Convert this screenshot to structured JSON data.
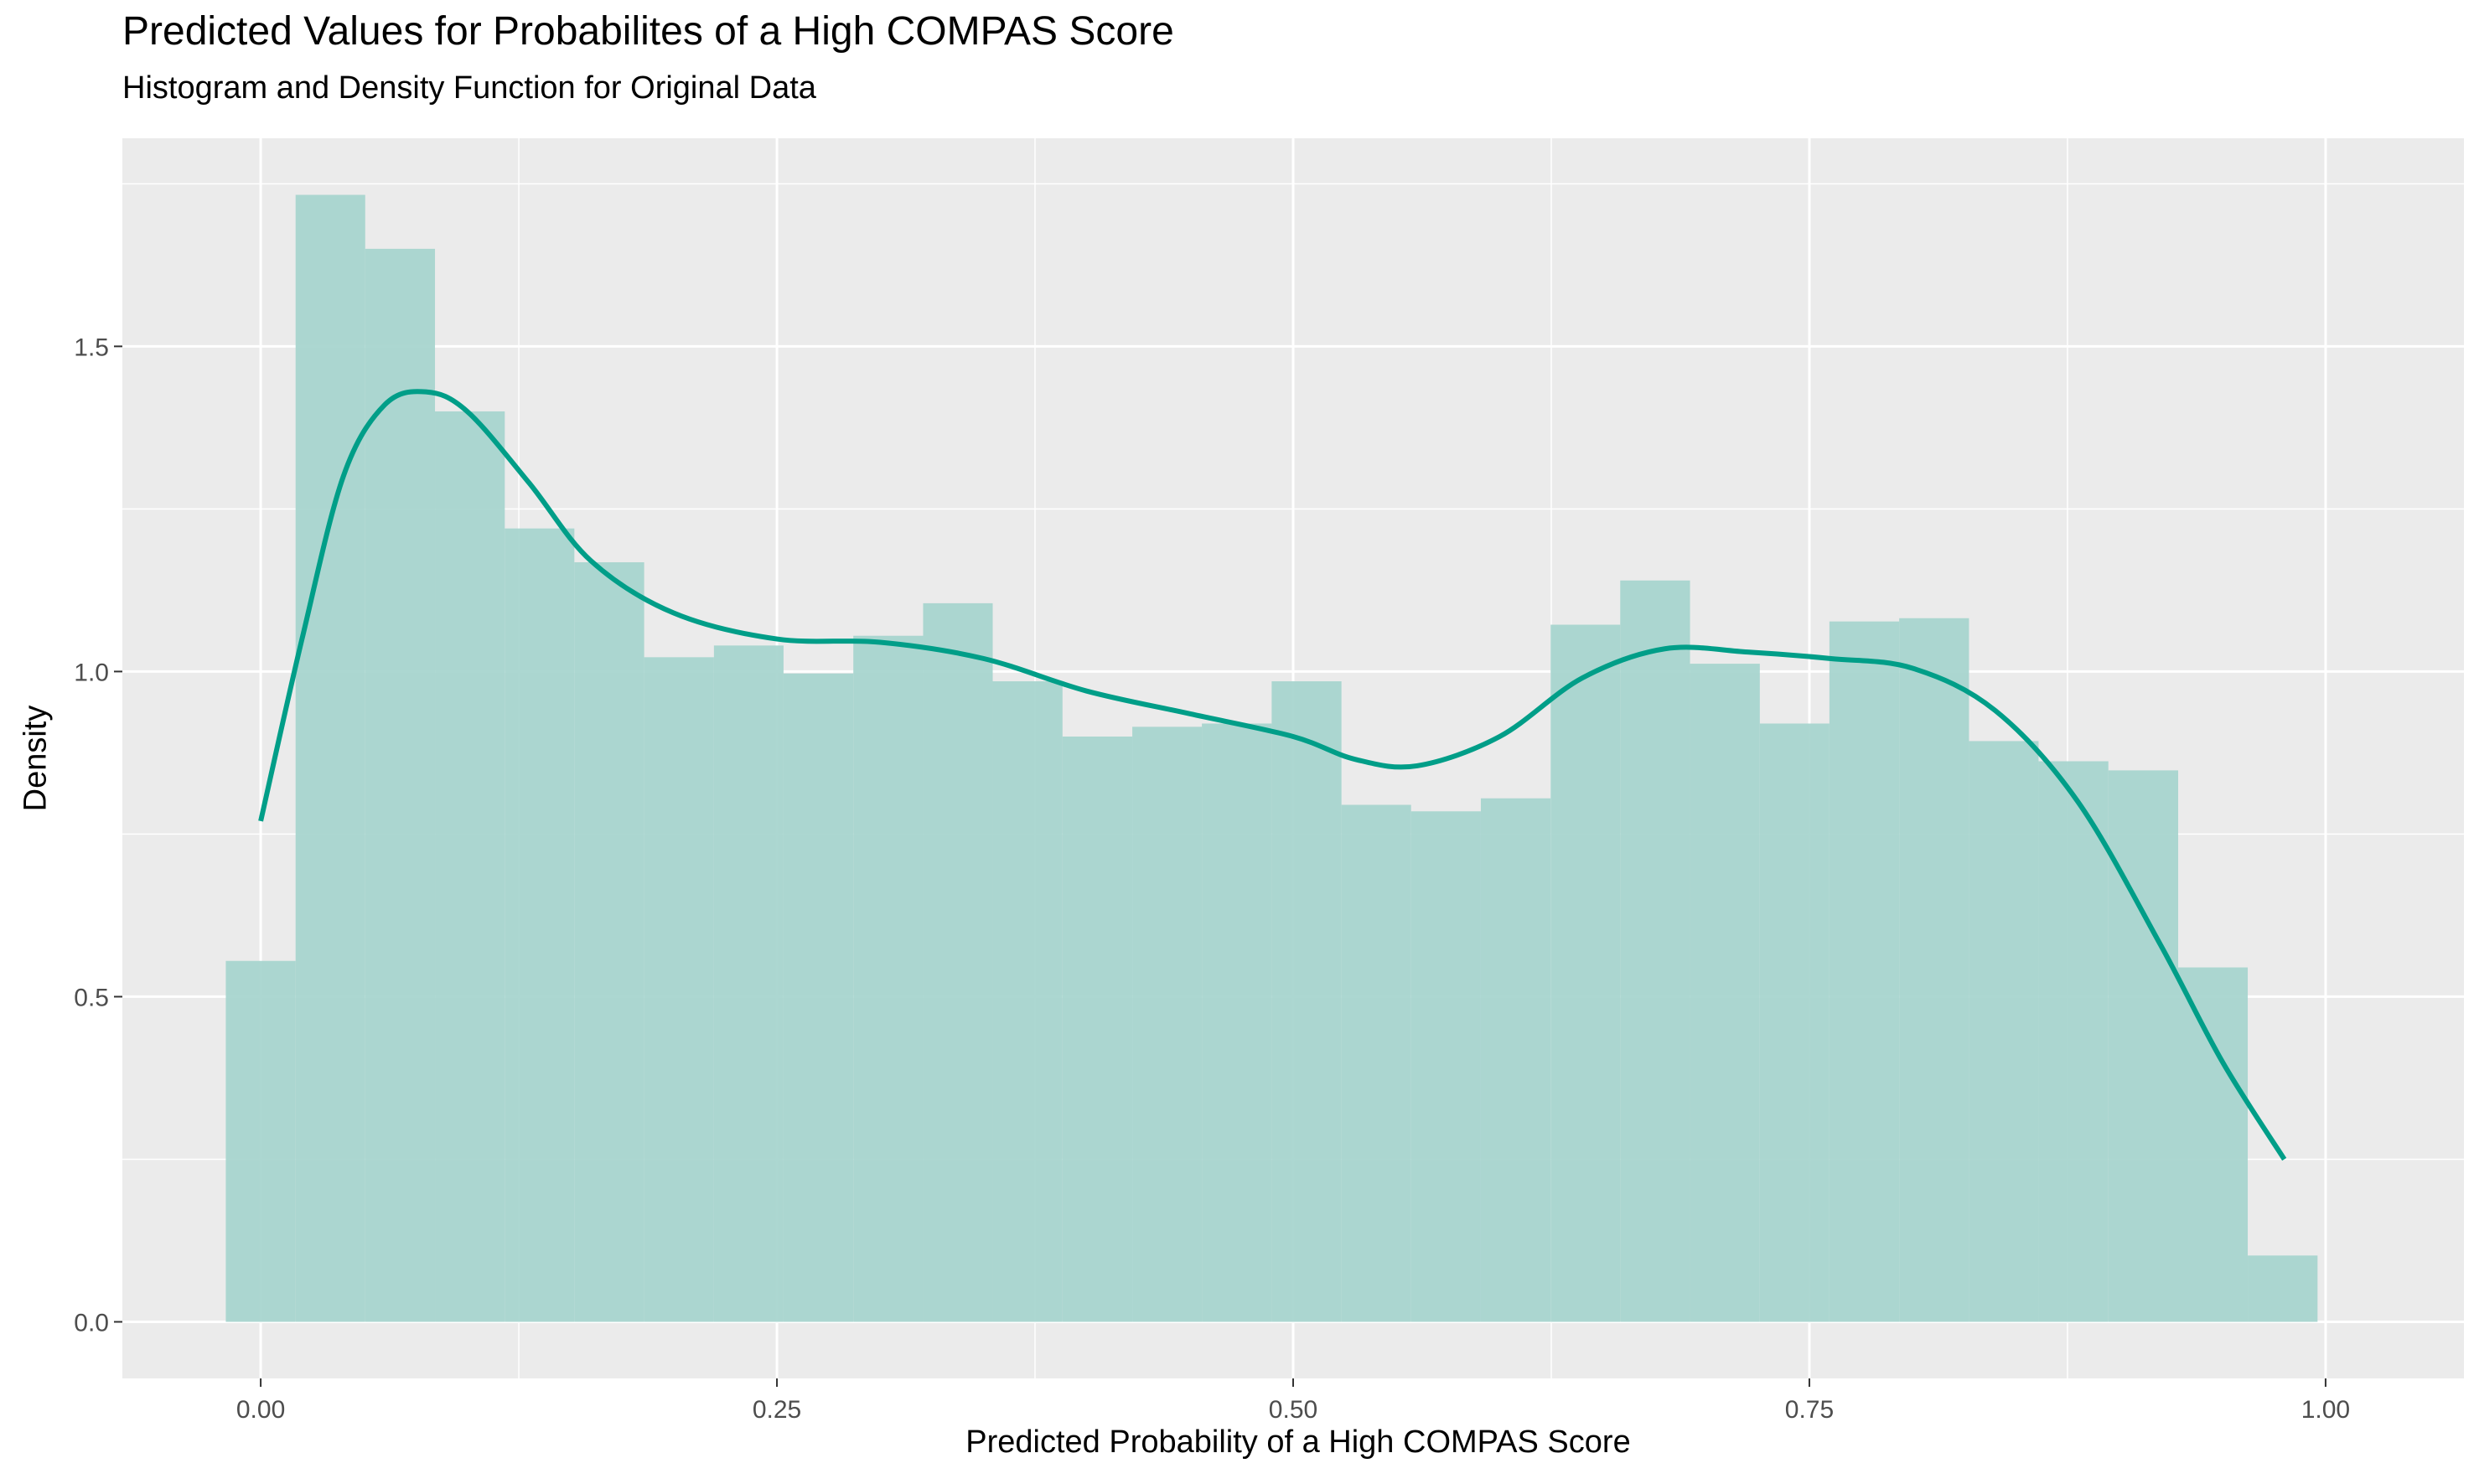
{
  "chart_data": {
    "type": "histogram",
    "title": "Predicted Values for Probabilites of a High COMPAS Score",
    "subtitle": "Histogram and Density Function for Original Data",
    "xlabel": "Predicted Probability of a High COMPAS Score",
    "ylabel": "Density",
    "xlim": [
      -0.067,
      1.067
    ],
    "ylim": [
      -0.087,
      1.82
    ],
    "x_ticks": [
      0.0,
      0.25,
      0.5,
      0.75,
      1.0
    ],
    "x_tick_labels": [
      "0.00",
      "0.25",
      "0.50",
      "0.75",
      "1.00"
    ],
    "y_ticks": [
      0.0,
      0.5,
      1.0,
      1.5
    ],
    "y_tick_labels": [
      "0.0",
      "0.5",
      "1.0",
      "1.5"
    ],
    "grid": true,
    "bin_width": 0.03376,
    "bins": [
      {
        "x_start": -0.0169,
        "x_end": 0.0169,
        "density": 0.555
      },
      {
        "x_start": 0.0169,
        "x_end": 0.0506,
        "density": 1.733
      },
      {
        "x_start": 0.0506,
        "x_end": 0.0844,
        "density": 1.65
      },
      {
        "x_start": 0.0844,
        "x_end": 0.1182,
        "density": 1.4
      },
      {
        "x_start": 0.1182,
        "x_end": 0.1519,
        "density": 1.22
      },
      {
        "x_start": 0.1519,
        "x_end": 0.1857,
        "density": 1.168
      },
      {
        "x_start": 0.1857,
        "x_end": 0.2195,
        "density": 1.022
      },
      {
        "x_start": 0.2195,
        "x_end": 0.2532,
        "density": 1.04
      },
      {
        "x_start": 0.2532,
        "x_end": 0.287,
        "density": 0.997
      },
      {
        "x_start": 0.287,
        "x_end": 0.3208,
        "density": 1.055
      },
      {
        "x_start": 0.3208,
        "x_end": 0.3545,
        "density": 1.105
      },
      {
        "x_start": 0.3545,
        "x_end": 0.3883,
        "density": 0.985
      },
      {
        "x_start": 0.3883,
        "x_end": 0.4221,
        "density": 0.9
      },
      {
        "x_start": 0.4221,
        "x_end": 0.4558,
        "density": 0.915
      },
      {
        "x_start": 0.4558,
        "x_end": 0.4896,
        "density": 0.92
      },
      {
        "x_start": 0.4896,
        "x_end": 0.5234,
        "density": 0.985
      },
      {
        "x_start": 0.5234,
        "x_end": 0.5571,
        "density": 0.795
      },
      {
        "x_start": 0.5571,
        "x_end": 0.5909,
        "density": 0.785
      },
      {
        "x_start": 0.5909,
        "x_end": 0.6247,
        "density": 0.805
      },
      {
        "x_start": 0.6247,
        "x_end": 0.6584,
        "density": 1.072
      },
      {
        "x_start": 0.6584,
        "x_end": 0.6922,
        "density": 1.14
      },
      {
        "x_start": 0.6922,
        "x_end": 0.726,
        "density": 1.012
      },
      {
        "x_start": 0.726,
        "x_end": 0.7597,
        "density": 0.92
      },
      {
        "x_start": 0.7597,
        "x_end": 0.7935,
        "density": 1.077
      },
      {
        "x_start": 0.7935,
        "x_end": 0.8273,
        "density": 1.082
      },
      {
        "x_start": 0.8273,
        "x_end": 0.861,
        "density": 0.893
      },
      {
        "x_start": 0.861,
        "x_end": 0.8948,
        "density": 0.862
      },
      {
        "x_start": 0.8948,
        "x_end": 0.9286,
        "density": 0.848
      },
      {
        "x_start": 0.9286,
        "x_end": 0.9623,
        "density": 0.545
      },
      {
        "x_start": 0.9623,
        "x_end": 0.9961,
        "density": 0.102
      }
    ],
    "density_curve": {
      "x": [
        0.0,
        0.02,
        0.04,
        0.06,
        0.08,
        0.1,
        0.13,
        0.16,
        0.2,
        0.25,
        0.3,
        0.35,
        0.4,
        0.45,
        0.5,
        0.53,
        0.56,
        0.6,
        0.64,
        0.68,
        0.72,
        0.76,
        0.8,
        0.84,
        0.88,
        0.92,
        0.95,
        0.98
      ],
      "y": [
        0.77,
        1.05,
        1.3,
        1.41,
        1.43,
        1.4,
        1.29,
        1.17,
        1.09,
        1.05,
        1.045,
        1.02,
        0.97,
        0.935,
        0.9,
        0.865,
        0.855,
        0.9,
        0.99,
        1.035,
        1.03,
        1.02,
        1.005,
        0.94,
        0.8,
        0.58,
        0.4,
        0.25
      ]
    },
    "colors": {
      "panel": "#ebebeb",
      "grid": "#ffffff",
      "bars": "#a8d5cf",
      "density_line": "#009e88",
      "tick_text": "#4d4d4d",
      "tick_mark": "#333333"
    }
  }
}
